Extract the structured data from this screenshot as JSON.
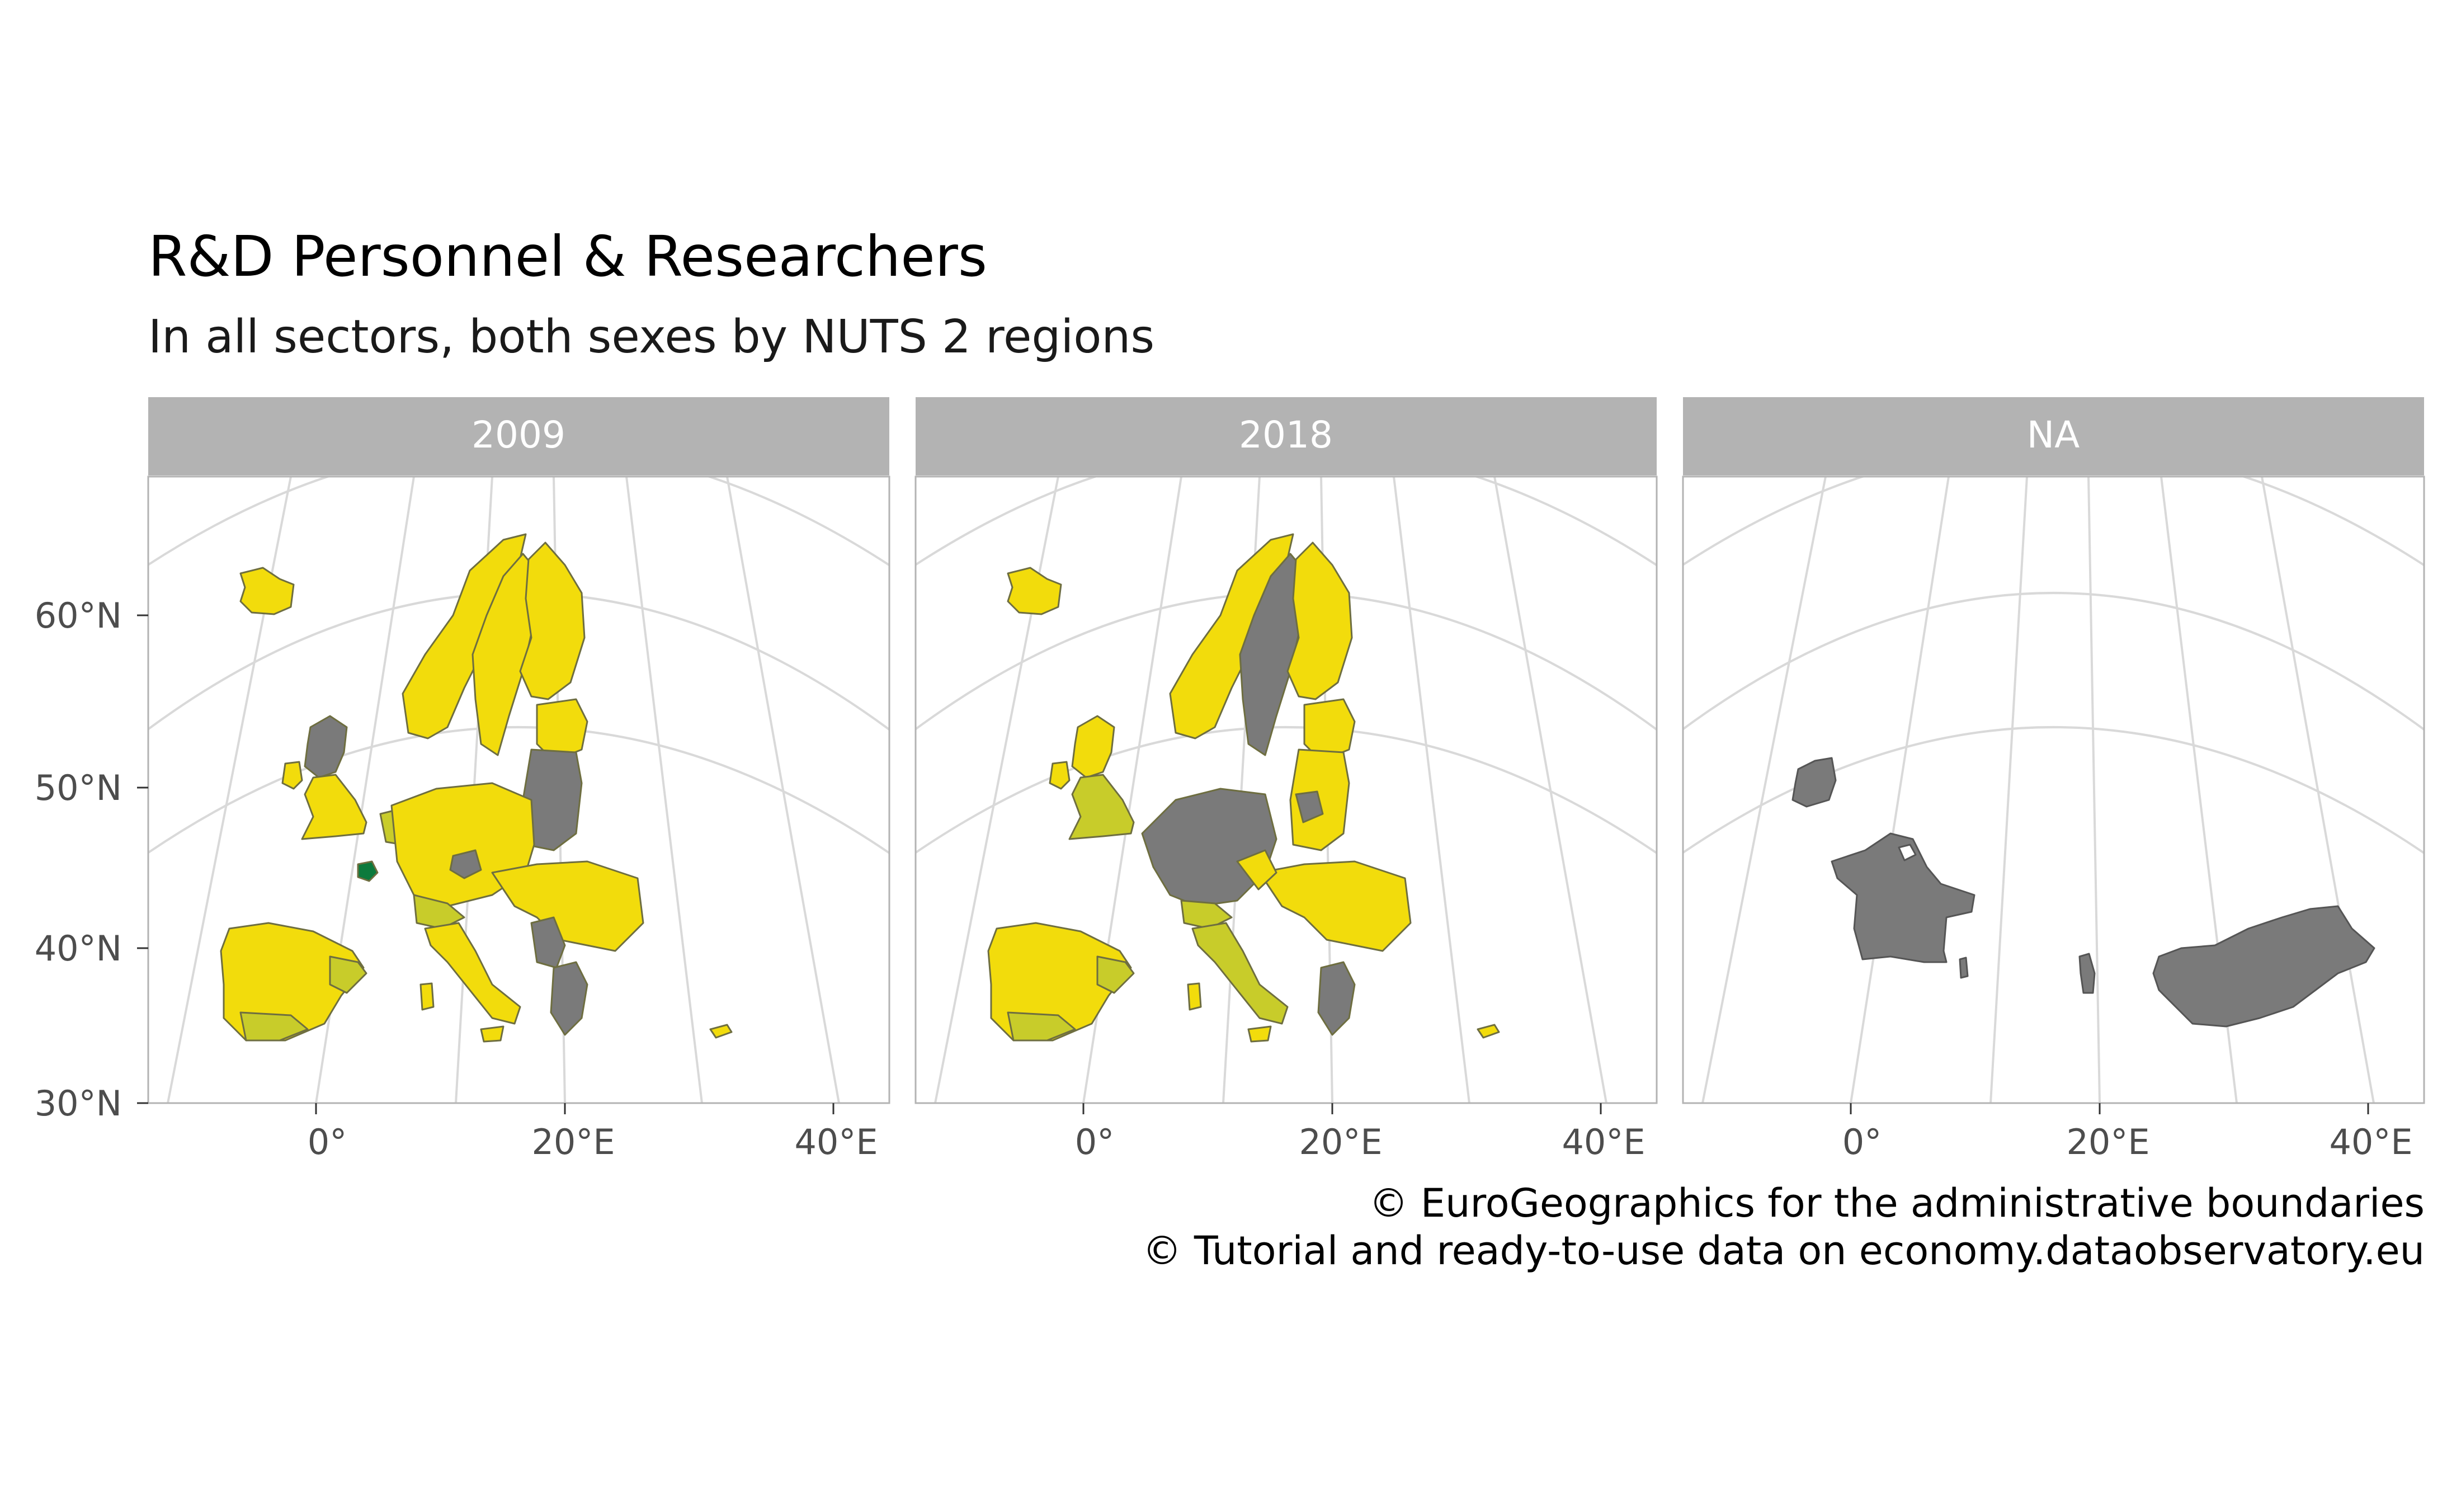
{
  "title": "R&D Personnel & Researchers",
  "subtitle": "In all sectors, both sexes by NUTS 2 regions",
  "caption": [
    "© EuroGeographics for the administrative boundaries",
    "© Tutorial and ready-to-use data on economy.dataobservatory.eu"
  ],
  "panels": [
    {
      "label": "2009"
    },
    {
      "label": "2018"
    },
    {
      "label": "NA"
    }
  ],
  "y_ticks": [
    "60°N",
    "50°N",
    "40°N",
    "30°N"
  ],
  "x_ticks": [
    "0°",
    "20°E",
    "40°E"
  ],
  "colors": {
    "strip": "#b3b3b3",
    "strip_text": "#ffffff",
    "graticule": "#d9d9d9",
    "panel_border": "#b3b3b3",
    "missing": "#7a7a7a",
    "low": "#f2dc0c",
    "mid": "#c8cc2a",
    "high": "#0c7a3c"
  }
}
